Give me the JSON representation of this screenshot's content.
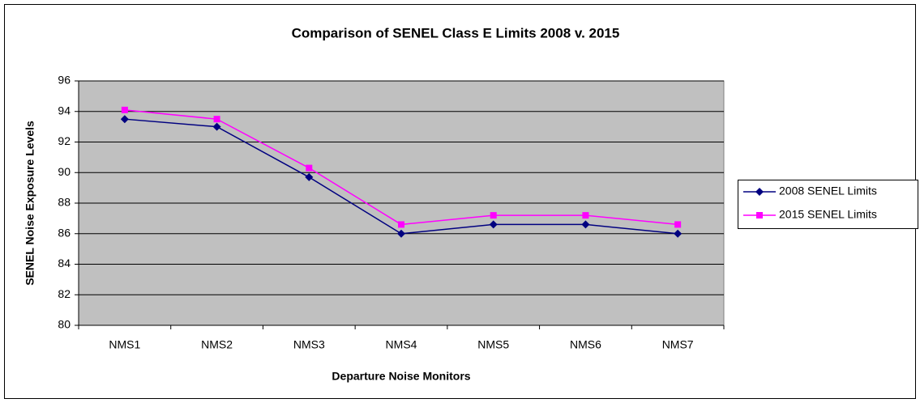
{
  "chart_data": {
    "type": "line",
    "title": "Comparison of SENEL Class E Limits 2008 v. 2015",
    "x_label": "Departure Noise Monitors",
    "y_label": "SENEL Noise Exposure Levels",
    "categories": [
      "NMS1",
      "NMS2",
      "NMS3",
      "NMS4",
      "NMS5",
      "NMS6",
      "NMS7"
    ],
    "series": [
      {
        "name": "2008 SENEL Limits",
        "color": "#000080",
        "marker": "diamond",
        "values": [
          93.5,
          93.0,
          89.7,
          86.0,
          86.6,
          86.6,
          86.0
        ]
      },
      {
        "name": "2015 SENEL Limits",
        "color": "#ff00ff",
        "marker": "square",
        "values": [
          94.1,
          93.5,
          90.3,
          86.6,
          87.2,
          87.2,
          86.6
        ]
      }
    ],
    "ylim": [
      80,
      96
    ],
    "yticks": [
      80,
      82,
      84,
      86,
      88,
      90,
      92,
      94,
      96
    ],
    "grid": true,
    "legend": "right"
  }
}
